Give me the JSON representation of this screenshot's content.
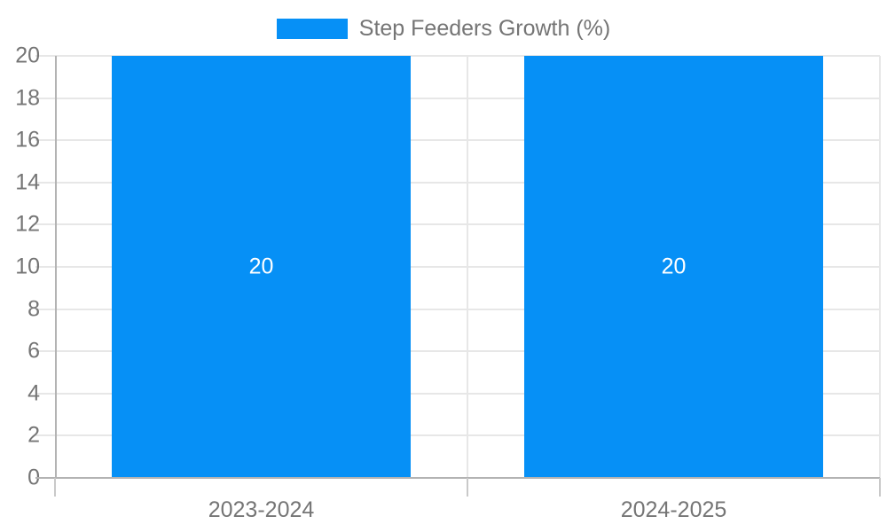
{
  "legend": {
    "label": "Step Feeders Growth (%)"
  },
  "colors": {
    "bar": "#0690f6",
    "grid": "#e7e7e7",
    "axis": "#b3b3b3",
    "tick_text": "#757575",
    "bar_label_text": "#ffffff"
  },
  "chart_data": {
    "type": "bar",
    "title": "",
    "xlabel": "",
    "ylabel": "",
    "categories": [
      "2023-2024",
      "2024-2025"
    ],
    "series": [
      {
        "name": "Step Feeders Growth (%)",
        "values": [
          20,
          20
        ]
      }
    ],
    "bar_labels": [
      "20",
      "20"
    ],
    "ylim": [
      0,
      20
    ],
    "yticks": [
      0,
      2,
      4,
      6,
      8,
      10,
      12,
      14,
      16,
      18,
      20
    ],
    "grid": true,
    "legend_position": "top"
  }
}
